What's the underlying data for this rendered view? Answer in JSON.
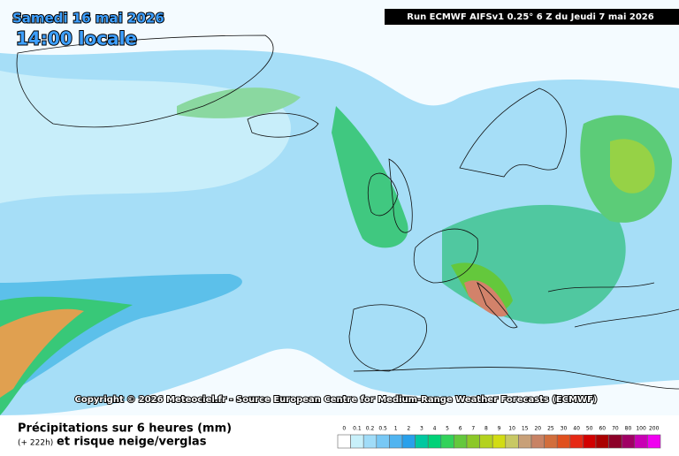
{
  "header": {
    "date": "Samedi 16 mai 2026",
    "time": "14:00 locale",
    "run": "Run ECMWF AIFSv1 0.25° 6 Z du Jeudi 7 mai 2026"
  },
  "copyright": "Copyright © 2026 Meteociel.fr - Source European Centre for Medium-Range Weather Forecasts (ECMWF)",
  "legend": {
    "title": "Précipitations sur 6 heures (mm)",
    "lead": "(+ 222h)",
    "subtitle": "et risque neige/verglas",
    "scale": [
      {
        "label": "0",
        "color": "#ffffff"
      },
      {
        "label": "0.1",
        "color": "#c8f0fa"
      },
      {
        "label": "0.2",
        "color": "#a0dcf8"
      },
      {
        "label": "0.5",
        "color": "#78c8f5"
      },
      {
        "label": "1",
        "color": "#50b4f0"
      },
      {
        "label": "2",
        "color": "#28a0eb"
      },
      {
        "label": "3",
        "color": "#00c8a0"
      },
      {
        "label": "4",
        "color": "#00d278"
      },
      {
        "label": "5",
        "color": "#32d25a"
      },
      {
        "label": "6",
        "color": "#64c83c"
      },
      {
        "label": "7",
        "color": "#8cc828"
      },
      {
        "label": "8",
        "color": "#b4d21e"
      },
      {
        "label": "9",
        "color": "#d2dc14"
      },
      {
        "label": "10",
        "color": "#c8c864"
      },
      {
        "label": "15",
        "color": "#c8a078"
      },
      {
        "label": "20",
        "color": "#c88264"
      },
      {
        "label": "25",
        "color": "#d26e3c"
      },
      {
        "label": "30",
        "color": "#e0501e"
      },
      {
        "label": "40",
        "color": "#e62814"
      },
      {
        "label": "50",
        "color": "#d20000"
      },
      {
        "label": "60",
        "color": "#aa0000"
      },
      {
        "label": "70",
        "color": "#8c0028"
      },
      {
        "label": "80",
        "color": "#a00064"
      },
      {
        "label": "100",
        "color": "#c800b4"
      },
      {
        "label": "200",
        "color": "#f000f0"
      }
    ]
  }
}
